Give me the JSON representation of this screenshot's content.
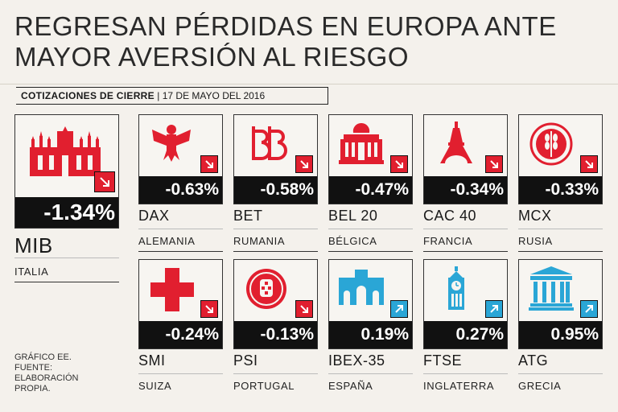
{
  "title": {
    "line1": "REGRESAN PÉRDIDAS EN EUROPA ANTE",
    "line2": "MAYOR AVERSIÓN AL RIESGO"
  },
  "subhead": {
    "label": "COTIZACIONES DE CIERRE",
    "date": "17 DE MAYO DEL 2016"
  },
  "colors": {
    "down": "#e11f2f",
    "up": "#2aa6d6",
    "icon": "#e11f2f",
    "icon_up": "#2aa6d6"
  },
  "main": {
    "index": "MIB",
    "country": "ITALIA",
    "change": "-1.34%",
    "direction": "down",
    "icon": "milan-cathedral-icon"
  },
  "cards": [
    {
      "index": "DAX",
      "country": "ALEMANIA",
      "change": "-0.63%",
      "direction": "down",
      "icon": "eagle-icon"
    },
    {
      "index": "BET",
      "country": "RUMANIA",
      "change": "-0.58%",
      "direction": "down",
      "icon": "bet-logo-icon"
    },
    {
      "index": "BEL 20",
      "country": "BÉLGICA",
      "change": "-0.47%",
      "direction": "down",
      "icon": "palace-icon"
    },
    {
      "index": "CAC 40",
      "country": "FRANCIA",
      "change": "-0.34%",
      "direction": "down",
      "icon": "eiffel-tower-icon"
    },
    {
      "index": "MCX",
      "country": "RUSIA",
      "change": "-0.33%",
      "direction": "down",
      "icon": "wheat-emblem-icon"
    },
    {
      "index": "SMI",
      "country": "SUIZA",
      "change": "-0.24%",
      "direction": "down",
      "icon": "swiss-cross-icon"
    },
    {
      "index": "PSI",
      "country": "PORTUGAL",
      "change": "-0.13%",
      "direction": "down",
      "icon": "portugal-shield-icon"
    },
    {
      "index": "IBEX-35",
      "country": "ESPAÑA",
      "change": "0.19%",
      "direction": "up",
      "icon": "puerta-alcala-icon"
    },
    {
      "index": "FTSE",
      "country": "INGLATERRA",
      "change": "0.27%",
      "direction": "up",
      "icon": "big-ben-icon"
    },
    {
      "index": "ATG",
      "country": "GRECIA",
      "change": "0.95%",
      "direction": "up",
      "icon": "greek-temple-icon"
    }
  ],
  "footer": {
    "line1": "GRÁFICO EE.",
    "line2": "FUENTE:",
    "line3": "ELABORACIÓN",
    "line4": "PROPIA."
  }
}
